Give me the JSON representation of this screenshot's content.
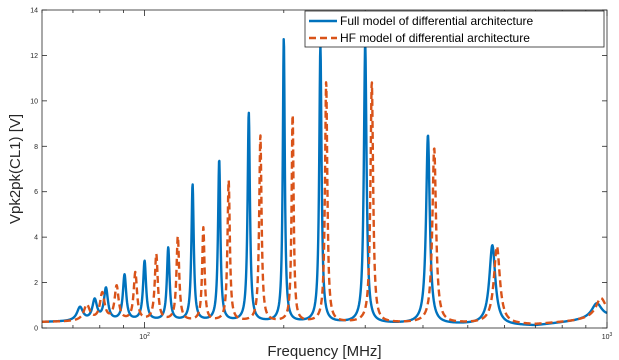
{
  "chart_data": {
    "type": "line",
    "title": "",
    "xlabel": "Frequency [MHz]",
    "ylabel": "Vpk2pk(CL1) [V]",
    "xscale": "log",
    "xlim": [
      60,
      1000
    ],
    "ylim": [
      0,
      14
    ],
    "grid": false,
    "legend_position": "top-right",
    "x_ticks": [
      100,
      1000
    ],
    "x_tick_labels": [
      "10^2",
      "10^3"
    ],
    "y_ticks": [
      0,
      2,
      4,
      6,
      8,
      10,
      12,
      14
    ],
    "y_tick_labels": [
      "0",
      "2",
      "4",
      "6",
      "8",
      "10",
      "12",
      "14"
    ],
    "series": [
      {
        "name": "Full model of differential architecture",
        "color": "#0072BD",
        "style": "solid",
        "baseline": [
          [
            60,
            0.25
          ],
          [
            100,
            0.3
          ],
          [
            300,
            0.2
          ],
          [
            500,
            0.15
          ],
          [
            700,
            0.1
          ],
          [
            850,
            0.3
          ],
          [
            1000,
            0.5
          ]
        ],
        "peaks": [
          {
            "f": 72.5,
            "peak": 0.6,
            "width": 0.018
          },
          {
            "f": 78,
            "peak": 0.9,
            "width": 0.014
          },
          {
            "f": 82.5,
            "peak": 1.4,
            "width": 0.012
          },
          {
            "f": 90.5,
            "peak": 2.0,
            "width": 0.01
          },
          {
            "f": 100,
            "peak": 2.6,
            "width": 0.009
          },
          {
            "f": 112.5,
            "peak": 3.2,
            "width": 0.008
          },
          {
            "f": 127,
            "peak": 6.0,
            "width": 0.007
          },
          {
            "f": 145,
            "peak": 7.1,
            "width": 0.007
          },
          {
            "f": 168,
            "peak": 9.2,
            "width": 0.007
          },
          {
            "f": 200,
            "peak": 12.5,
            "width": 0.006
          },
          {
            "f": 240,
            "peak": 12.2,
            "width": 0.007
          },
          {
            "f": 300,
            "peak": 12.3,
            "width": 0.008
          },
          {
            "f": 410,
            "peak": 8.3,
            "width": 0.011
          },
          {
            "f": 565,
            "peak": 3.5,
            "width": 0.018
          },
          {
            "f": 950,
            "peak": 0.65,
            "width": 0.03
          }
        ]
      },
      {
        "name": "HF model of differential architecture",
        "color": "#D95319",
        "style": "dashed",
        "baseline": [
          [
            60,
            0.25
          ],
          [
            100,
            0.3
          ],
          [
            300,
            0.22
          ],
          [
            500,
            0.2
          ],
          [
            700,
            0.15
          ],
          [
            850,
            0.3
          ],
          [
            1000,
            0.5
          ]
        ],
        "peaks": [
          {
            "f": 75,
            "peak": 0.7,
            "width": 0.018
          },
          {
            "f": 81,
            "peak": 1.2,
            "width": 0.014
          },
          {
            "f": 87,
            "peak": 1.5,
            "width": 0.012
          },
          {
            "f": 95.5,
            "peak": 2.1,
            "width": 0.01
          },
          {
            "f": 106,
            "peak": 2.9,
            "width": 0.009
          },
          {
            "f": 118,
            "peak": 3.7,
            "width": 0.008
          },
          {
            "f": 134,
            "peak": 4.1,
            "width": 0.007
          },
          {
            "f": 152,
            "peak": 6.2,
            "width": 0.007
          },
          {
            "f": 178,
            "peak": 8.2,
            "width": 0.007
          },
          {
            "f": 209,
            "peak": 9.2,
            "width": 0.006
          },
          {
            "f": 247,
            "peak": 10.6,
            "width": 0.007
          },
          {
            "f": 310,
            "peak": 10.6,
            "width": 0.008
          },
          {
            "f": 423,
            "peak": 7.7,
            "width": 0.011
          },
          {
            "f": 578,
            "peak": 3.4,
            "width": 0.018
          },
          {
            "f": 970,
            "peak": 0.85,
            "width": 0.03
          }
        ]
      }
    ]
  }
}
